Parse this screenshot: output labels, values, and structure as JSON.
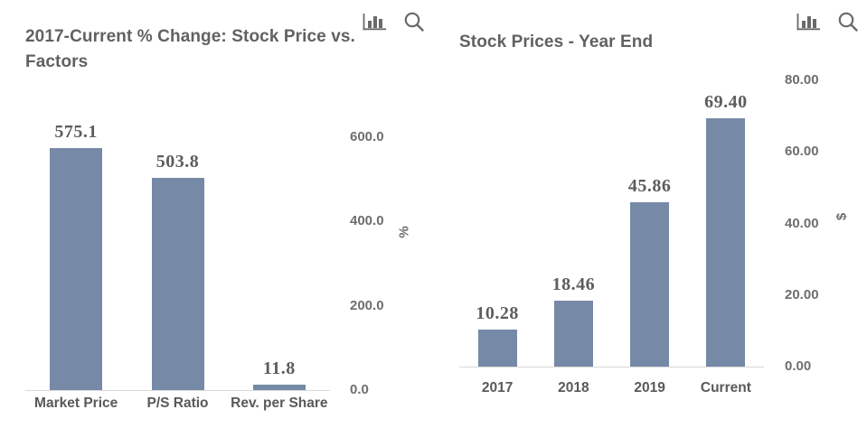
{
  "chart_data": [
    {
      "type": "bar",
      "title": "2017-Current % Change: Stock Price vs. Factors",
      "categories": [
        "Market Price",
        "P/S Ratio",
        "Rev. per Share"
      ],
      "values": [
        575.1,
        503.8,
        11.8
      ],
      "value_labels": [
        "575.1",
        "503.8",
        "11.8"
      ],
      "xlabel": "",
      "ylabel": "%",
      "ylim": [
        0,
        600
      ],
      "yticks": [
        {
          "value": 600,
          "label": "600.0"
        },
        {
          "value": 400,
          "label": "400.0"
        },
        {
          "value": 200,
          "label": "200.0"
        },
        {
          "value": 0,
          "label": "0.0"
        }
      ],
      "grid": false,
      "legend": "none",
      "axis_labels_side": "right",
      "bar_color": "#7689A6"
    },
    {
      "type": "bar",
      "title": "Stock Prices - Year End",
      "categories": [
        "2017",
        "2018",
        "2019",
        "Current"
      ],
      "values": [
        10.28,
        18.46,
        45.86,
        69.4
      ],
      "value_labels": [
        "10.28",
        "18.46",
        "45.86",
        "69.40"
      ],
      "xlabel": "",
      "ylabel": "$",
      "ylim": [
        0,
        80
      ],
      "yticks": [
        {
          "value": 80,
          "label": "80.00"
        },
        {
          "value": 60,
          "label": "60.00"
        },
        {
          "value": 40,
          "label": "40.00"
        },
        {
          "value": 20,
          "label": "20.00"
        },
        {
          "value": 0,
          "label": "0.00"
        }
      ],
      "grid": false,
      "legend": "none",
      "axis_labels_side": "right",
      "bar_color": "#7689A6"
    }
  ],
  "toolbar": {
    "chart_type_icon": "bar-chart",
    "zoom_icon": "magnifier"
  },
  "colors": {
    "bar": "#7689A6",
    "title_text": "#616161",
    "tick_text": "#6E6E6E",
    "category_text": "#595959",
    "value_label_text": "#5D5D5D",
    "axis_line": "#D9D9D9",
    "icon": "#6A6A6A",
    "background": "#FFFFFF"
  }
}
